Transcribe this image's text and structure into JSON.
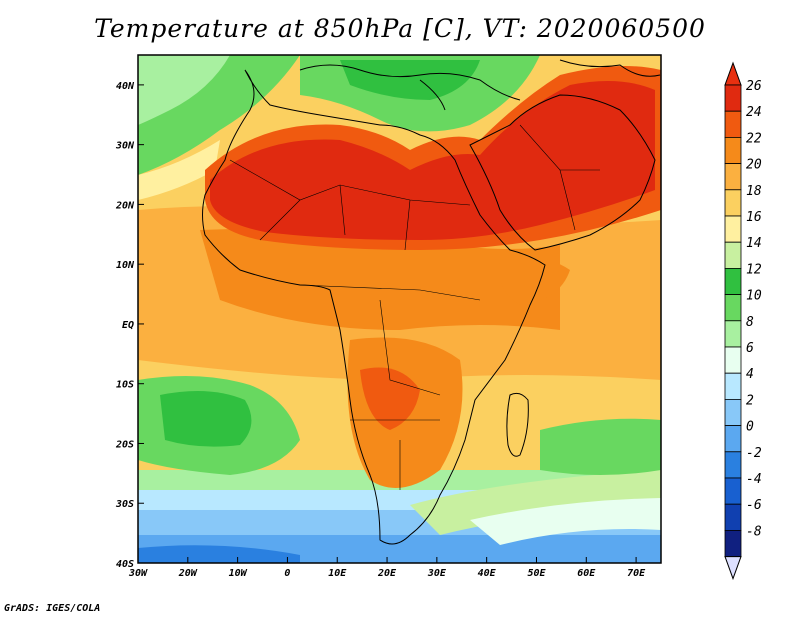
{
  "title": "Temperature at 850hPa [C], VT: 2020060500",
  "credit": "GrADS: IGES/COLA",
  "map": {
    "lon_range": [
      -30,
      75
    ],
    "lat_range": [
      -40,
      45
    ],
    "x_ticks": [
      "30W",
      "20W",
      "10W",
      "0",
      "10E",
      "20E",
      "30E",
      "40E",
      "50E",
      "60E",
      "70E"
    ],
    "y_ticks": [
      "40N",
      "30N",
      "20N",
      "10N",
      "EQ",
      "10S",
      "20S",
      "30S",
      "40S"
    ]
  },
  "colorbar": {
    "unit": "C",
    "labels": [
      "26",
      "24",
      "22",
      "20",
      "18",
      "16",
      "14",
      "12",
      "10",
      "8",
      "6",
      "4",
      "2",
      "0",
      "-2",
      "-4",
      "-6",
      "-8"
    ],
    "colors": {
      "top_arrow": "#e83010",
      "bottom_arrow": "#dde0ff",
      "bins": [
        "#e02a10",
        "#f05a10",
        "#f58a1a",
        "#fbb040",
        "#fbd060",
        "#fff0a0",
        "#c8f0a0",
        "#30c040",
        "#68d860",
        "#a8f0a0",
        "#e8fff0",
        "#b8e8ff",
        "#88c8f8",
        "#5ba8f0",
        "#2a80e0",
        "#1860d0",
        "#1040b0",
        "#102080"
      ]
    }
  }
}
